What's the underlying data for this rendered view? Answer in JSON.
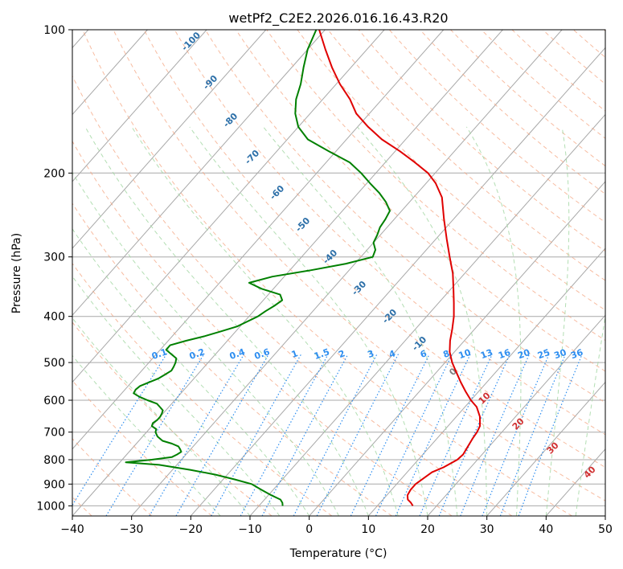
{
  "chart_data": {
    "type": "skew-t",
    "title": "wetPf2_C2E2.2026.016.16.43.R20",
    "xlabel": "Temperature (°C)",
    "ylabel": "Pressure (hPa)",
    "xlim": [
      -40,
      50
    ],
    "ylim": [
      1050,
      100
    ],
    "log_y": true,
    "grid": true,
    "x_ticks": [
      -40,
      -30,
      -20,
      -10,
      0,
      10,
      20,
      30,
      40,
      50
    ],
    "x_tick_labels": [
      "−40",
      "−30",
      "−20",
      "−10",
      "0",
      "10",
      "20",
      "30",
      "40",
      "50"
    ],
    "y_ticks": [
      1000,
      900,
      800,
      700,
      600,
      500,
      400,
      300,
      200,
      100
    ],
    "y_tick_labels": [
      "1000",
      "900",
      "800",
      "700",
      "600",
      "500",
      "400",
      "300",
      "200",
      "100"
    ],
    "series": [
      {
        "color": "#e00000",
        "p": [
          1000,
          985,
          970,
          950,
          925,
          900,
          870,
          850,
          830,
          800,
          780,
          750,
          720,
          700,
          680,
          650,
          620,
          600,
          575,
          550,
          520,
          500,
          475,
          450,
          425,
          400,
          375,
          350,
          325,
          300,
          275,
          250,
          225,
          210,
          200,
          190,
          180,
          170,
          160,
          150,
          140,
          130,
          120,
          110,
          100
        ],
        "t": [
          16,
          15.2,
          14.2,
          13.5,
          13.2,
          13.2,
          13.8,
          14.2,
          15.4,
          16.6,
          16.8,
          16.4,
          16.0,
          15.8,
          15.4,
          14.0,
          12.0,
          10.0,
          7.8,
          5.6,
          3.0,
          1.2,
          -0.8,
          -2.4,
          -3.8,
          -5.4,
          -7.4,
          -9.6,
          -12.0,
          -15.0,
          -18.2,
          -21.6,
          -25.2,
          -28.4,
          -31.2,
          -35.0,
          -39.2,
          -44.0,
          -48.2,
          -52.2,
          -55.4,
          -59.4,
          -63.2,
          -67.0,
          -71.0
        ]
      },
      {
        "color": "#008000",
        "p": [
          1000,
          985,
          970,
          950,
          925,
          900,
          880,
          860,
          840,
          820,
          810,
          800,
          790,
          780,
          770,
          760,
          750,
          740,
          730,
          715,
          700,
          690,
          680,
          670,
          660,
          650,
          640,
          630,
          620,
          610,
          600,
          590,
          580,
          570,
          560,
          550,
          540,
          530,
          520,
          510,
          500,
          490,
          480,
          470,
          460,
          450,
          440,
          430,
          420,
          410,
          400,
          390,
          380,
          370,
          360,
          350,
          340,
          330,
          320,
          310,
          300,
          290,
          280,
          270,
          260,
          250,
          240,
          230,
          220,
          210,
          200,
          190,
          180,
          170,
          160,
          150,
          140,
          130,
          120,
          110,
          100
        ],
        "t": [
          -6.0,
          -6.5,
          -7.3,
          -9.5,
          -12.0,
          -14.5,
          -18.0,
          -22.0,
          -27.0,
          -33.0,
          -39.0,
          -35.0,
          -32.0,
          -31.5,
          -31.2,
          -31.8,
          -32.5,
          -34.0,
          -36.0,
          -37.5,
          -38.5,
          -38.8,
          -40.0,
          -40.3,
          -40.0,
          -40.0,
          -40.2,
          -40.5,
          -41.5,
          -42.5,
          -44.6,
          -46.5,
          -48.0,
          -48.2,
          -48.0,
          -47.0,
          -46.0,
          -45.5,
          -45.0,
          -45.2,
          -45.5,
          -46.0,
          -47.5,
          -49.0,
          -49.0,
          -47.0,
          -44.5,
          -42.5,
          -40.5,
          -39.5,
          -38.5,
          -38.0,
          -37.3,
          -36.8,
          -38.0,
          -42.0,
          -45.0,
          -42.0,
          -36.5,
          -31.5,
          -28.0,
          -28.6,
          -30.0,
          -30.5,
          -31.2,
          -31.5,
          -32.0,
          -34.0,
          -36.5,
          -39.5,
          -42.5,
          -46.0,
          -51.2,
          -56.5,
          -60.0,
          -62.5,
          -64.5,
          -66.0,
          -68.0,
          -70.0,
          -71.5
        ]
      }
    ],
    "isotherm_step": 10,
    "dry_adiabats_theta_c": [
      -100,
      -90,
      -80,
      -70,
      -60,
      -50,
      -40,
      -30,
      -20,
      -10,
      0,
      10,
      20,
      30,
      40,
      50,
      60,
      70,
      80,
      90,
      100,
      110,
      120,
      130,
      140,
      150,
      160,
      170,
      180,
      190,
      200,
      210
    ],
    "dry_adiabat_labels": [
      "-100",
      "-90",
      "-80",
      "-70",
      "-60",
      "-50",
      "-40",
      "-30",
      "-20",
      "-10"
    ],
    "moist_adiabats_c": [
      -15,
      -10,
      -5,
      0,
      5,
      10,
      15,
      20,
      25,
      30,
      35,
      40,
      45
    ],
    "moist_adiabat_labels": [
      "0",
      "10",
      "20",
      "30",
      "40"
    ],
    "mixing_ratios_gkg": [
      0.1,
      0.2,
      0.4,
      0.6,
      1,
      1.5,
      2,
      3,
      4,
      6,
      8,
      10,
      13,
      16,
      20,
      25,
      30,
      36
    ],
    "mixing_ratio_labels": [
      "0.1",
      "0.2",
      "0.4",
      "0.6",
      "1",
      "1.5",
      "2",
      "3",
      "4",
      "6",
      "8",
      "10",
      "13",
      "16",
      "20",
      "25",
      "30",
      "36"
    ],
    "mixing_label_pressure": 500,
    "colors": {
      "isotherm": "#a8a8a8",
      "isobar": "#a8a8a8",
      "dry_adiabat": "#f4a582",
      "moist_adiabat": "#a6d8a6",
      "mixing_ratio": "#2e8ef0",
      "temperature": "#e00000",
      "dewpoint": "#008000"
    }
  }
}
